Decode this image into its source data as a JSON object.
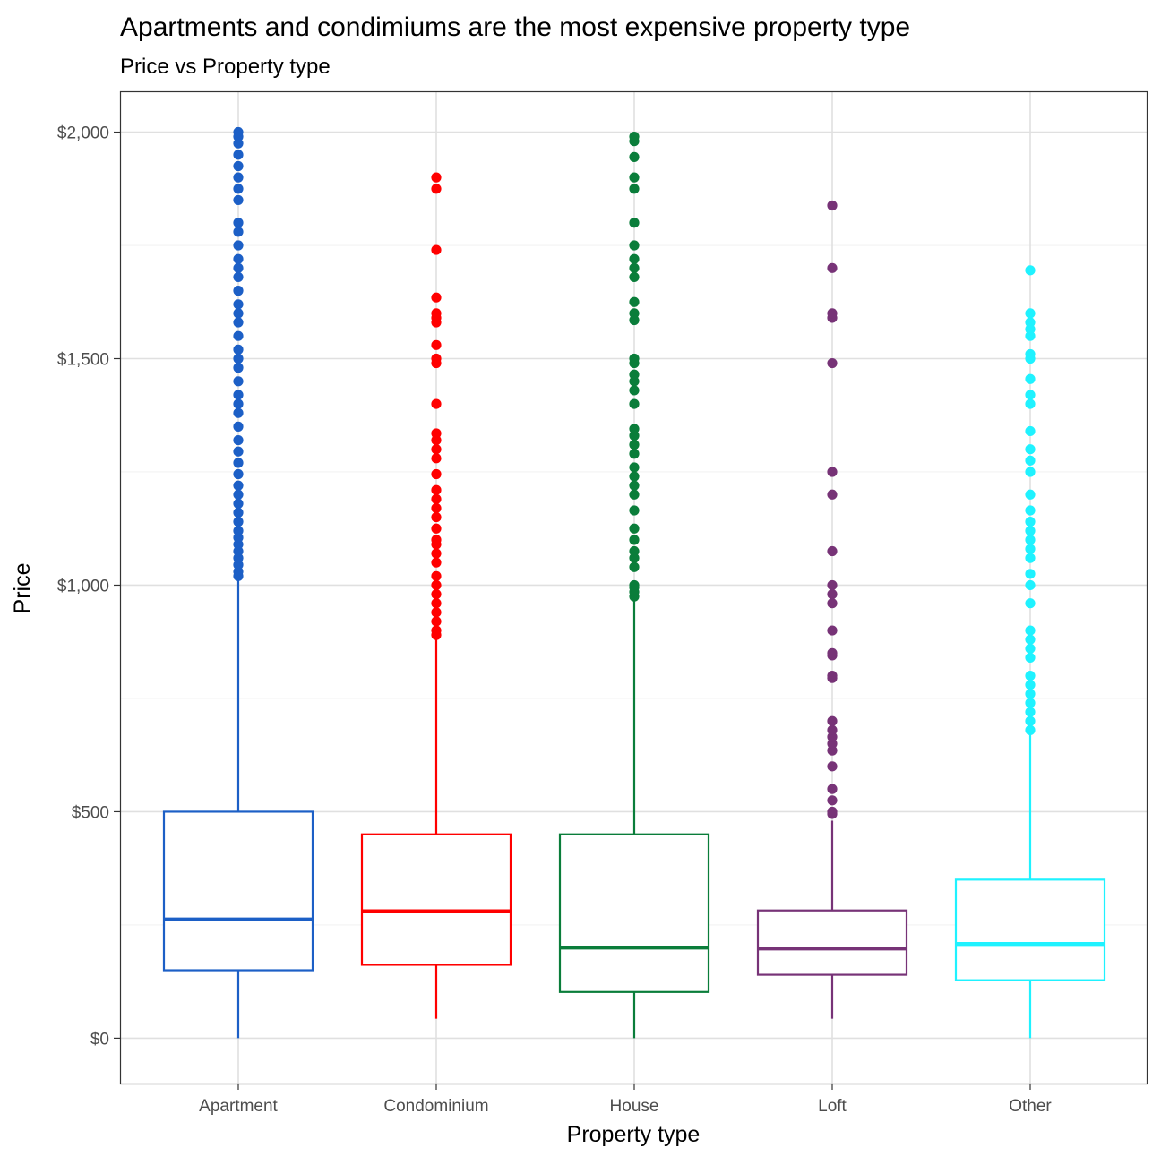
{
  "chart_data": {
    "type": "boxplot",
    "title": "Apartments and condimiums are the most expensive property type",
    "subtitle": "Price vs Property type",
    "xlabel": "Property type",
    "ylabel": "Price",
    "ylim": [
      -100,
      2090
    ],
    "y_ticks": [
      0,
      500,
      1000,
      1500,
      2000
    ],
    "y_tick_labels": [
      "$0",
      "$500",
      "$1,000",
      "$1,500",
      "$2,000"
    ],
    "grid": true,
    "legend": "none",
    "categories": [
      "Apartment",
      "Condominium",
      "House",
      "Loft",
      "Other"
    ],
    "series": [
      {
        "category": "Apartment",
        "color": "#1c5fc6",
        "whisker_low": 0,
        "q1": 150,
        "median": 262,
        "q3": 500,
        "whisker_high": 1015,
        "outliers": [
          1020,
          1030,
          1045,
          1060,
          1075,
          1090,
          1105,
          1120,
          1140,
          1160,
          1180,
          1200,
          1220,
          1245,
          1270,
          1295,
          1320,
          1350,
          1380,
          1400,
          1420,
          1450,
          1480,
          1500,
          1520,
          1550,
          1580,
          1600,
          1620,
          1650,
          1680,
          1700,
          1720,
          1750,
          1780,
          1800,
          1850,
          1875,
          1900,
          1925,
          1950,
          1975,
          1990,
          2000
        ]
      },
      {
        "category": "Condominium",
        "color": "#ff0000",
        "whisker_low": 43,
        "q1": 162,
        "median": 280,
        "q3": 450,
        "whisker_high": 880,
        "outliers": [
          890,
          900,
          920,
          940,
          960,
          980,
          1000,
          1020,
          1050,
          1070,
          1090,
          1100,
          1125,
          1150,
          1170,
          1190,
          1210,
          1245,
          1280,
          1300,
          1320,
          1335,
          1400,
          1490,
          1500,
          1530,
          1580,
          1590,
          1600,
          1635,
          1740,
          1875,
          1900
        ]
      },
      {
        "category": "House",
        "color": "#0a7d3a",
        "whisker_low": 0,
        "q1": 102,
        "median": 200,
        "q3": 450,
        "whisker_high": 965,
        "outliers": [
          975,
          985,
          995,
          1000,
          1040,
          1060,
          1075,
          1100,
          1125,
          1165,
          1200,
          1220,
          1240,
          1260,
          1290,
          1310,
          1330,
          1345,
          1400,
          1430,
          1450,
          1465,
          1490,
          1500,
          1585,
          1600,
          1625,
          1680,
          1700,
          1720,
          1750,
          1800,
          1875,
          1900,
          1945,
          1980,
          1990
        ]
      },
      {
        "category": "Loft",
        "color": "#773377",
        "whisker_low": 43,
        "q1": 140,
        "median": 198,
        "q3": 282,
        "whisker_high": 480,
        "outliers": [
          495,
          500,
          525,
          550,
          600,
          635,
          650,
          665,
          680,
          700,
          795,
          800,
          845,
          850,
          900,
          960,
          980,
          1000,
          1075,
          1200,
          1250,
          1490,
          1590,
          1600,
          1700,
          1838
        ]
      },
      {
        "category": "Other",
        "color": "#1ff2ff",
        "whisker_low": 0,
        "q1": 128,
        "median": 208,
        "q3": 350,
        "whisker_high": 670,
        "outliers": [
          680,
          700,
          720,
          740,
          760,
          780,
          800,
          840,
          860,
          880,
          900,
          960,
          1000,
          1025,
          1060,
          1080,
          1100,
          1120,
          1140,
          1165,
          1200,
          1250,
          1275,
          1300,
          1340,
          1400,
          1420,
          1455,
          1500,
          1510,
          1550,
          1565,
          1580,
          1600,
          1695
        ]
      }
    ]
  }
}
